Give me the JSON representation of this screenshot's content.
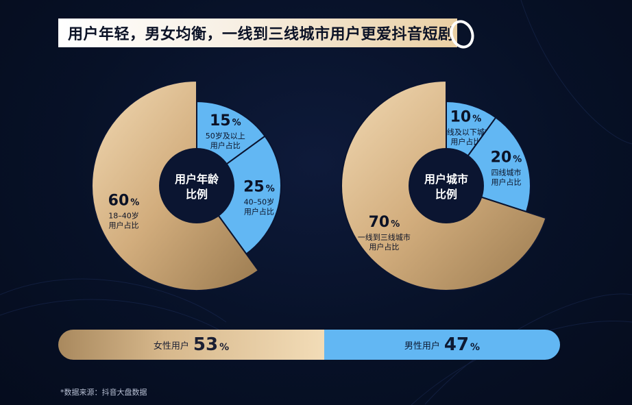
{
  "title": "用户年轻，男女均衡，一线到三线城市用户更爱抖音短剧",
  "chart_data": [
    {
      "type": "pie",
      "center_label": [
        "用户年龄",
        "比例"
      ],
      "slices": [
        {
          "label": [
            "50岁及以上",
            "用户占比"
          ],
          "value": 15,
          "display": "15",
          "unit": "%",
          "color": "#62b7f3"
        },
        {
          "label": [
            "40–50岁",
            "用户占比"
          ],
          "value": 25,
          "display": "25",
          "unit": "%",
          "color": "#62b7f3"
        },
        {
          "label": [
            "18–40岁",
            "用户占比"
          ],
          "value": 60,
          "display": "60",
          "unit": "%",
          "color": "#d9b888"
        }
      ]
    },
    {
      "type": "pie",
      "center_label": [
        "用户城市",
        "比例"
      ],
      "slices": [
        {
          "label": [
            "五线及以下城市",
            "用户占比"
          ],
          "value": 10,
          "display": "10",
          "unit": "%",
          "color": "#62b7f3"
        },
        {
          "label": [
            "四线城市",
            "用户占比"
          ],
          "value": 20,
          "display": "20",
          "unit": "%",
          "color": "#62b7f3"
        },
        {
          "label": [
            "一线到三线城市",
            "用户占比"
          ],
          "value": 70,
          "display": "70",
          "unit": "%",
          "color": "#d9b888"
        }
      ]
    },
    {
      "type": "bar",
      "orientation": "horizontal-stacked",
      "segments": [
        {
          "label": "女性用户",
          "value": 53,
          "display": "53",
          "unit": "%",
          "color": "#d9b888"
        },
        {
          "label": "男性用户",
          "value": 47,
          "display": "47",
          "unit": "%",
          "color": "#62b7f3"
        }
      ]
    }
  ],
  "footnote": "*数据来源：抖音大盘数据"
}
